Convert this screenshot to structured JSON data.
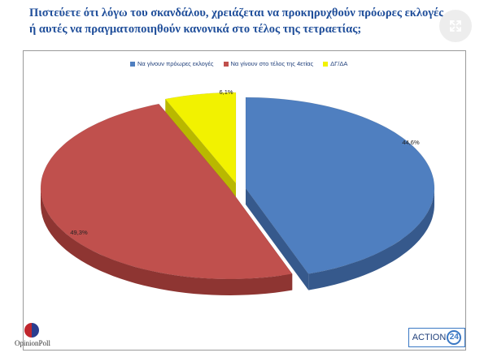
{
  "title": "Πιστεύετε ότι λόγω του σκανδάλου, χρειάζεται να προκηρυχθούν πρόωρες εκλογές ή αυτές να πραγματοποιηθούν κανονικά στο τέλος της τετραετίας;",
  "icons": {
    "expand": "expand-icon"
  },
  "colors": {
    "title": "#1f4e9a",
    "blue_top": "#4f7fc0",
    "blue_side": "#36598c",
    "red_top": "#c0504d",
    "red_side": "#8e3532",
    "yellow_top": "#f2f200",
    "yellow_side": "#b9b800"
  },
  "chart_data": {
    "type": "pie",
    "title": "",
    "labels": [
      "Να γίνουν πρόωρες εκλογές",
      "Να γίνουν στο τέλος της 4ετίας",
      "ΔΓ/ΔΑ"
    ],
    "values": [
      44.6,
      49.3,
      6.1
    ],
    "value_labels": [
      "44,6%",
      "49,3%",
      "6,1%"
    ],
    "colors": [
      "#4f7fc0",
      "#c0504d",
      "#f2f200"
    ],
    "legend_placement": "top",
    "three_d": true,
    "exploded": true
  },
  "logos": {
    "left": "OpinionPoll",
    "right_text": "ACTION",
    "right_num": "24"
  }
}
